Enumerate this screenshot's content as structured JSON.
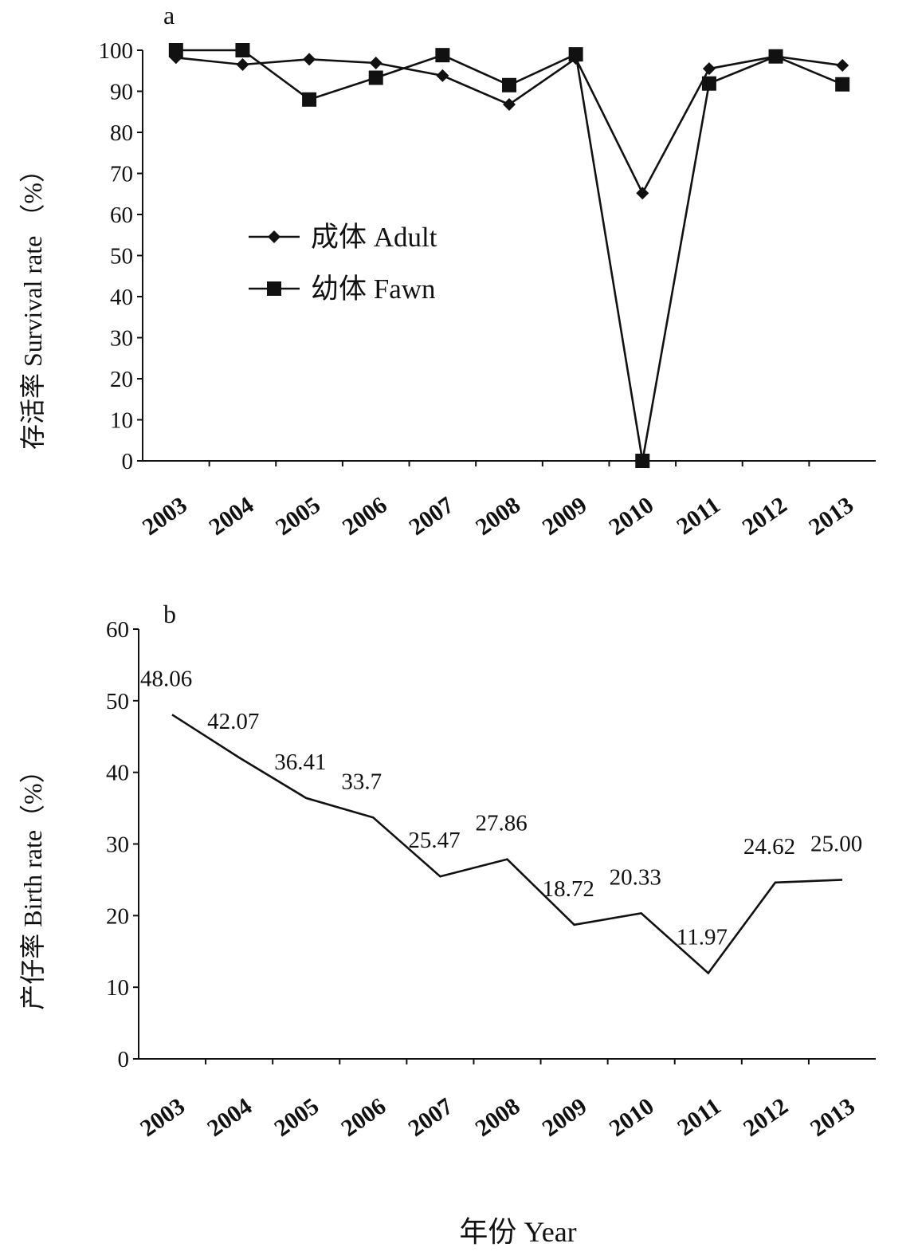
{
  "chart_data": [
    {
      "type": "line",
      "panel_label": "a",
      "categories": [
        "2003",
        "2004",
        "2005",
        "2006",
        "2007",
        "2008",
        "2009",
        "2010",
        "2011",
        "2012",
        "2013"
      ],
      "ylabel": "存活率 Survival rate （%）",
      "ylim": [
        0,
        100
      ],
      "yticks": [
        0,
        10,
        20,
        30,
        40,
        50,
        60,
        70,
        80,
        90,
        100
      ],
      "grid": false,
      "legend_position": "center-left",
      "series": [
        {
          "name": "成体 Adult",
          "marker": "diamond",
          "values": [
            98.2,
            96.5,
            97.8,
            96.9,
            93.8,
            86.8,
            98.0,
            65.2,
            95.5,
            98.5,
            96.3
          ]
        },
        {
          "name": "幼体 Fawn",
          "marker": "square",
          "values": [
            100,
            100,
            88.0,
            93.3,
            98.8,
            91.5,
            99.0,
            0,
            91.9,
            98.5,
            91.7
          ]
        }
      ]
    },
    {
      "type": "line",
      "panel_label": "b",
      "categories": [
        "2003",
        "2004",
        "2005",
        "2006",
        "2007",
        "2008",
        "2009",
        "2010",
        "2011",
        "2012",
        "2013"
      ],
      "ylabel": "产仔率 Birth rate（%）",
      "xlabel": "年份 Year",
      "ylim": [
        0,
        60
      ],
      "yticks": [
        0,
        10,
        20,
        30,
        40,
        50,
        60
      ],
      "grid": false,
      "series": [
        {
          "values": [
            48.06,
            42.07,
            36.41,
            33.7,
            25.47,
            27.86,
            18.72,
            20.33,
            11.97,
            24.62,
            25.0
          ],
          "data_labels": [
            "48.06",
            "42.07",
            "36.41",
            "33.7",
            "25.47",
            "27.86",
            "18.72",
            "20.33",
            "11.97",
            "24.62",
            "25.00"
          ]
        }
      ]
    }
  ]
}
